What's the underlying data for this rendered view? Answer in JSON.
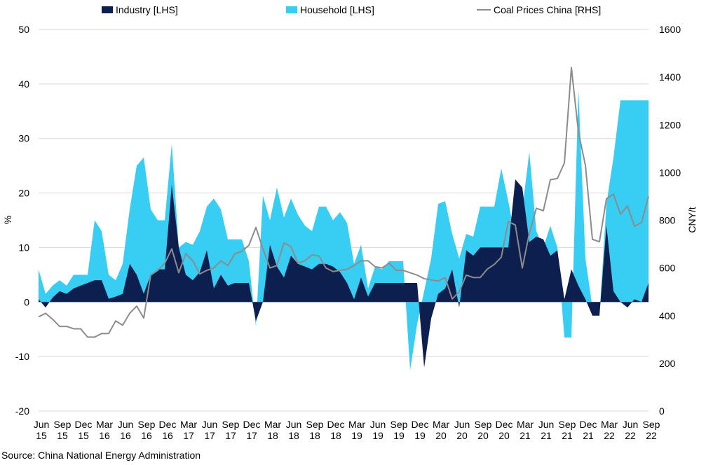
{
  "legend": {
    "industry": "Industry [LHS]",
    "household": "Household [LHS]",
    "coal": "Coal Prices China [RHS]"
  },
  "source": "Source: China National Energy Administration",
  "colors": {
    "industry": "#0d1f4f",
    "household": "#38cdf2",
    "coal": "#8c8c8c",
    "grid": "#d9d9d9"
  },
  "chart_data": {
    "type": "area",
    "x": [
      "2015-06",
      "2015-07",
      "2015-08",
      "2015-09",
      "2015-10",
      "2015-11",
      "2015-12",
      "2016-01",
      "2016-02",
      "2016-03",
      "2016-04",
      "2016-05",
      "2016-06",
      "2016-07",
      "2016-08",
      "2016-09",
      "2016-10",
      "2016-11",
      "2016-12",
      "2017-01",
      "2017-02",
      "2017-03",
      "2017-04",
      "2017-05",
      "2017-06",
      "2017-07",
      "2017-08",
      "2017-09",
      "2017-10",
      "2017-11",
      "2017-12",
      "2018-01",
      "2018-02",
      "2018-03",
      "2018-04",
      "2018-05",
      "2018-06",
      "2018-07",
      "2018-08",
      "2018-09",
      "2018-10",
      "2018-11",
      "2018-12",
      "2019-01",
      "2019-02",
      "2019-03",
      "2019-04",
      "2019-05",
      "2019-06",
      "2019-07",
      "2019-08",
      "2019-09",
      "2019-10",
      "2019-11",
      "2019-12",
      "2020-01",
      "2020-02",
      "2020-03",
      "2020-04",
      "2020-05",
      "2020-06",
      "2020-07",
      "2020-08",
      "2020-09",
      "2020-10",
      "2020-11",
      "2020-12",
      "2021-01",
      "2021-02",
      "2021-03",
      "2021-04",
      "2021-05",
      "2021-06",
      "2021-07",
      "2021-08",
      "2021-09",
      "2021-10",
      "2021-11",
      "2021-12",
      "2022-01",
      "2022-02",
      "2022-03",
      "2022-04",
      "2022-05",
      "2022-06",
      "2022-07",
      "2022-08",
      "2022-09"
    ],
    "x_tick_labels": [
      [
        "Jun",
        "15"
      ],
      [
        "Sep",
        "15"
      ],
      [
        "Dec",
        "15"
      ],
      [
        "Mar",
        "16"
      ],
      [
        "Jun",
        "16"
      ],
      [
        "Sep",
        "16"
      ],
      [
        "Dec",
        "16"
      ],
      [
        "Mar",
        "17"
      ],
      [
        "Jun",
        "17"
      ],
      [
        "Sep",
        "17"
      ],
      [
        "Dec",
        "17"
      ],
      [
        "Mar",
        "18"
      ],
      [
        "Jun",
        "18"
      ],
      [
        "Sep",
        "18"
      ],
      [
        "Dec",
        "18"
      ],
      [
        "Mar",
        "19"
      ],
      [
        "Jun",
        "19"
      ],
      [
        "Sep",
        "19"
      ],
      [
        "Dec",
        "19"
      ],
      [
        "Mar",
        "20"
      ],
      [
        "Jun",
        "20"
      ],
      [
        "Sep",
        "20"
      ],
      [
        "Dec",
        "20"
      ],
      [
        "Mar",
        "21"
      ],
      [
        "Jun",
        "21"
      ],
      [
        "Sep",
        "21"
      ],
      [
        "Dec",
        "21"
      ],
      [
        "Mar",
        "22"
      ],
      [
        "Jun",
        "22"
      ],
      [
        "Sep",
        "22"
      ]
    ],
    "series": [
      {
        "name": "Industry [LHS]",
        "axis": "left",
        "kind": "area",
        "values": [
          0.5,
          -1,
          0.8,
          2,
          1.5,
          2.5,
          3,
          3.5,
          4,
          4,
          0.6,
          1,
          1.5,
          7,
          5,
          1.5,
          5,
          6,
          6,
          21.5,
          10,
          5,
          4,
          5.5,
          9.5,
          2.5,
          5,
          3,
          3.5,
          3.5,
          3.5,
          -3.5,
          0,
          10.5,
          6.5,
          4.5,
          8.5,
          7,
          6.5,
          6,
          7,
          7,
          6.5,
          5.5,
          3.5,
          0.5,
          4.5,
          1,
          3.5,
          3.5,
          3.5,
          3.5,
          3.5,
          3.5,
          3.5,
          -12,
          -3,
          1.5,
          2.5,
          6,
          -1,
          9.5,
          8.5,
          10,
          10,
          10,
          10,
          10,
          22.5,
          21,
          11,
          12,
          11.5,
          8.5,
          9.5,
          0.5,
          6,
          3,
          0.5,
          -2.5,
          -2.5,
          14,
          2,
          0,
          -1,
          0.5,
          0,
          3.5
        ]
      },
      {
        "name": "Household [LHS]",
        "axis": "left",
        "kind": "area",
        "values": [
          6,
          1.5,
          3,
          4,
          3,
          5,
          5,
          5,
          15,
          13,
          5,
          4,
          7,
          17,
          25,
          26.5,
          17,
          15,
          15,
          29,
          10,
          11,
          10.5,
          13,
          17.5,
          19,
          17,
          11.5,
          11.5,
          11.5,
          7.5,
          -4.5,
          19.5,
          15,
          21,
          15.5,
          19,
          16,
          14,
          13,
          17.5,
          17.5,
          15,
          16.5,
          14.5,
          7,
          10.5,
          2.5,
          6.5,
          6,
          7.5,
          7.5,
          7.5,
          -12.5,
          -4,
          2,
          8,
          18,
          18.5,
          12.5,
          8,
          12.5,
          12,
          17.5,
          17.5,
          17.5,
          24.5,
          18.5,
          11.5,
          17,
          27.5,
          13,
          10,
          14,
          10,
          -6.5,
          -6.5,
          39,
          8,
          -1,
          -2.5,
          18,
          26.5,
          37,
          37,
          37,
          37,
          37
        ]
      },
      {
        "name": "Coal Prices China [RHS]",
        "axis": "right",
        "kind": "line",
        "values": [
          395,
          410,
          385,
          355,
          355,
          345,
          345,
          310,
          310,
          325,
          325,
          378,
          360,
          410,
          440,
          390,
          570,
          590,
          620,
          680,
          580,
          660,
          630,
          575,
          590,
          600,
          630,
          610,
          660,
          670,
          695,
          770,
          680,
          600,
          610,
          705,
          690,
          620,
          630,
          655,
          650,
          600,
          585,
          590,
          595,
          610,
          630,
          630,
          605,
          600,
          620,
          590,
          590,
          580,
          570,
          555,
          550,
          545,
          560,
          470,
          500,
          570,
          560,
          560,
          595,
          615,
          645,
          795,
          780,
          600,
          745,
          850,
          840,
          970,
          975,
          1040,
          1440,
          1170,
          1030,
          720,
          710,
          890,
          910,
          825,
          860,
          775,
          790,
          900
        ]
      }
    ],
    "y_left": {
      "label": "%",
      "min": -20,
      "max": 50,
      "ticks": [
        -20,
        -10,
        0,
        10,
        20,
        30,
        40,
        50
      ]
    },
    "y_right": {
      "label": "CNY/t",
      "min": 0,
      "max": 1600,
      "ticks": [
        0,
        200,
        400,
        600,
        800,
        1000,
        1200,
        1400,
        1600
      ]
    },
    "grid": true,
    "legend_position": "top"
  }
}
